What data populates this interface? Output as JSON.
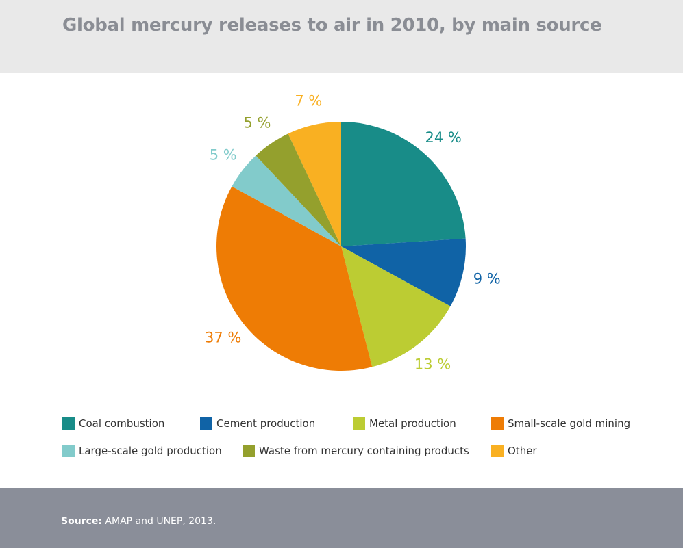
{
  "header": {
    "title": "Global mercury releases to air in 2010, by main source"
  },
  "chart_data": {
    "type": "pie",
    "title": "Global mercury releases to air in 2010, by main source",
    "unit": "%",
    "slices": [
      {
        "label": "Coal combustion",
        "value": 24,
        "value_label": "24 %",
        "color": "#188c88"
      },
      {
        "label": "Cement production",
        "value": 9,
        "value_label": "9 %",
        "color": "#1063a6"
      },
      {
        "label": "Metal production",
        "value": 13,
        "value_label": "13 %",
        "color": "#bccc33"
      },
      {
        "label": "Small-scale gold mining",
        "value": 37,
        "value_label": "37 %",
        "color": "#ee7c05"
      },
      {
        "label": "Large-scale gold production",
        "value": 5,
        "value_label": "5 %",
        "color": "#82cbcb"
      },
      {
        "label": "Waste from mercury containing products",
        "value": 5,
        "value_label": "5 %",
        "color": "#94a02d"
      },
      {
        "label": "Other",
        "value": 7,
        "value_label": "7 %",
        "color": "#f9b022"
      }
    ],
    "start_angle": "12 o'clock",
    "direction": "clockwise",
    "legend_position": "bottom"
  },
  "footer": {
    "source_label": "Source:",
    "source_text": " AMAP and UNEP, 2013."
  }
}
